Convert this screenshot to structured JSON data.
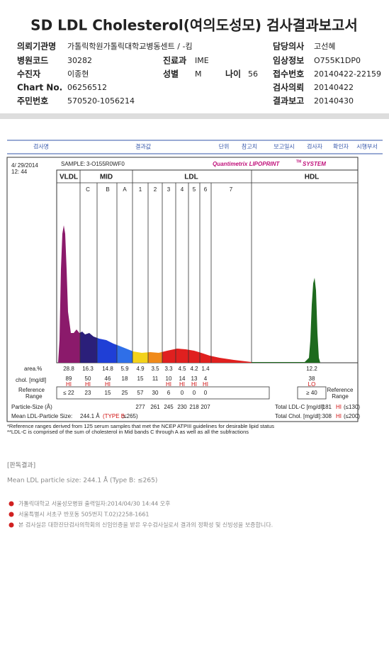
{
  "header": {
    "title": "SD LDL Cholesterol(여의도성모) 검사결과보고서"
  },
  "info": [
    {
      "label": "의뢰기관명",
      "value": "가톨릭학원가톨릭대학교병동센트 / -킴"
    },
    {
      "label": "담당의사",
      "value": "고선혜"
    },
    {
      "label": "병원코드",
      "value": "30282"
    },
    {
      "label": "진료과",
      "value": "IME"
    },
    {
      "label": "임상정보",
      "value": "O755K1DP0"
    },
    {
      "label": "수진자",
      "value": "이종현"
    },
    {
      "label": "성별",
      "value": "M"
    },
    {
      "label": "나이",
      "value": "56"
    },
    {
      "label": "접수번호",
      "value": "20140422-22159"
    },
    {
      "label": "Chart No.",
      "value": "06256512"
    },
    {
      "label": "검사의뢰",
      "value": "20140422"
    },
    {
      "label": "주민번호",
      "value": "570520-1056214"
    },
    {
      "label": "결과보고",
      "value": "20140430"
    }
  ],
  "table_header": [
    "검사명",
    "결과값",
    "단위",
    "참고치",
    "보고일시",
    "검사자",
    "확인자",
    "시행부서"
  ],
  "lipoprint": {
    "date": "4/ 29/2014",
    "time": "12: 44",
    "sample_label": "SAMPLE:",
    "sample": "3-O155R0WF0",
    "brand": "Quantimetrix LIPOPRINT",
    "brand_tm": "TM",
    "brand_suffix": "SYSTEM",
    "bands": [
      "VLDL",
      "MID",
      "LDL",
      "HDL"
    ],
    "subbands": [
      "C",
      "B",
      "A",
      "1",
      "2",
      "3",
      "4",
      "5",
      "6",
      "7"
    ],
    "area": {
      "label": "area.%",
      "values": [
        28.8,
        16.3,
        14.8,
        5.9,
        4.9,
        3.5,
        3.3,
        4.5,
        4.2,
        1.4
      ],
      "hdl": 12.2
    },
    "chol": {
      "label": "chol. [mg/dl]",
      "values": [
        {
          "value": 89,
          "flag": "HI"
        },
        {
          "value": 50,
          "flag": "HI"
        },
        {
          "value": 46,
          "flag": "HI"
        },
        {
          "value": 18
        },
        {
          "value": 15
        },
        {
          "value": 11
        },
        {
          "value": 10,
          "flag": "HI"
        },
        {
          "value": 14,
          "flag": "HI"
        },
        {
          "value": 13,
          "flag": "HI"
        },
        {
          "value": 4,
          "flag": "HI"
        }
      ],
      "hdl": {
        "value": 38,
        "flag": "LO"
      }
    },
    "reference": {
      "label": [
        "Reference",
        "Range"
      ],
      "values": [
        "≤ 22",
        23,
        15,
        25,
        57,
        30,
        6,
        0,
        0,
        0
      ],
      "hdl": "≥ 40"
    },
    "particle_size": {
      "label": "Particle-Size (Å)",
      "values": [
        277,
        261,
        245,
        230,
        218,
        207
      ]
    },
    "mean_ldl": {
      "label": "Mean LDL-Particle Size:",
      "value": "244.1 Å",
      "type": "(TYPE B",
      "range": ";≤265)"
    },
    "total_ldl": {
      "label": "Total LDL-C [mg/dl]:",
      "value": 181,
      "flag": "HI",
      "range": "(≤130)"
    },
    "total_chol": {
      "label": "Total Chol. [mg/dl]:",
      "value": 308,
      "flag": "HI",
      "range": "(≤200)"
    },
    "notes": [
      "*Reference ranges derived from 125 serum samples that met the NCEP ATPIII guidelines for desirable lipid status",
      "**LDL-C is comprised of the sum of cholesterol in Mid bands C through A as well as all the subfractions"
    ]
  },
  "interpretation": {
    "title": "[판독결과]",
    "text": "Mean LDL particle size: 244.1 Å (Type B: ≤265)"
  },
  "footer": [
    "가톨릭대학교 서울성모병원      출력일자:2014/04/30 14:44 오후",
    "서울특별시 서초구 반포동 505번지 T.02)2258-1661",
    "본 검사실은 대한진단검사의학회의 신임인증을 받은 우수검사실로서 결과의 정확성 및 신빙성을 보증합니다."
  ]
}
